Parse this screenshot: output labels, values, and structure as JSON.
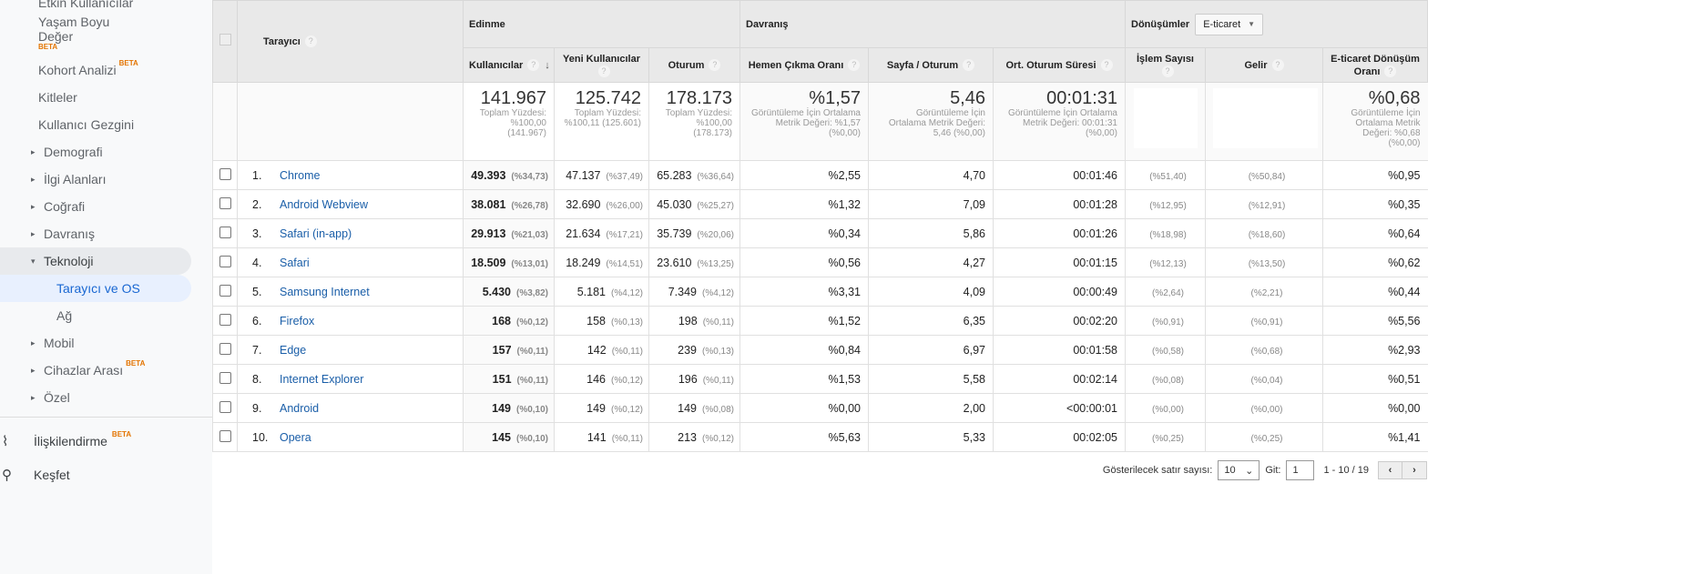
{
  "sidebar": {
    "items": [
      {
        "label": "Etkin Kullanıcılar",
        "indent": 2
      },
      {
        "label": "Yaşam Boyu Değer",
        "beta": "BETA",
        "indent": 2
      },
      {
        "label": "Kohort Analizi",
        "beta": "BETA",
        "indent": 2
      },
      {
        "label": "Kitleler",
        "indent": 2
      },
      {
        "label": "Kullanıcı Gezgini",
        "indent": 2
      },
      {
        "label": "Demografi",
        "expand": "▸"
      },
      {
        "label": "İlgi Alanları",
        "expand": "▸"
      },
      {
        "label": "Coğrafi",
        "expand": "▸"
      },
      {
        "label": "Davranış",
        "expand": "▸"
      },
      {
        "label": "Teknoloji",
        "expand": "▾",
        "state": "open"
      },
      {
        "label": "Tarayıcı ve OS",
        "indent": 3,
        "state": "selected"
      },
      {
        "label": "Ağ",
        "indent": 3
      },
      {
        "label": "Mobil",
        "expand": "▸"
      },
      {
        "label": "Cihazlar Arası",
        "beta": "BETA",
        "expand": "▸"
      },
      {
        "label": "Özel",
        "expand": "▸"
      }
    ],
    "bottom": [
      {
        "label": "İlişkilendirme",
        "beta": "BETA",
        "icon": "attribution-icon"
      },
      {
        "label": "Keşfet",
        "icon": "lightbulb-icon"
      }
    ]
  },
  "table": {
    "dimension": "Tarayıcı",
    "groups": {
      "acq": "Edinme",
      "beh": "Davranış",
      "conv": "Dönüşümler",
      "conv_select": "E-ticaret"
    },
    "columns": [
      "Kullanıcılar",
      "Yeni Kullanıcılar",
      "Oturum",
      "Hemen Çıkma Oranı",
      "Sayfa / Oturum",
      "Ort. Oturum Süresi",
      "İşlem Sayısı",
      "Gelir",
      "E-ticaret Dönüşüm Oranı"
    ],
    "totals": [
      {
        "v": "141.967",
        "s": "Toplam Yüzdesi: %100,00 (141.967)"
      },
      {
        "v": "125.742",
        "s": "Toplam Yüzdesi: %100,11 (125.601)"
      },
      {
        "v": "178.173",
        "s": "Toplam Yüzdesi: %100,00 (178.173)"
      },
      {
        "v": "%1,57",
        "s": "Görüntüleme İçin Ortalama Metrik Değeri: %1,57 (%0,00)"
      },
      {
        "v": "5,46",
        "s": "Görüntüleme İçin Ortalama Metrik Değeri: 5,46 (%0,00)"
      },
      {
        "v": "00:01:31",
        "s": "Görüntüleme İçin Ortalama Metrik Değeri: 00:01:31 (%0,00)"
      },
      {
        "v": "",
        "s": ""
      },
      {
        "v": "",
        "s": ""
      },
      {
        "v": "%0,68",
        "s": "Görüntüleme İçin Ortalama Metrik Değeri: %0,68 (%0,00)"
      }
    ],
    "rows": [
      [
        "1.",
        "Chrome",
        "49.393",
        "(%34,73)",
        "47.137",
        "(%37,49)",
        "65.283",
        "(%36,64)",
        "%2,55",
        "4,70",
        "00:01:46",
        "(%51,40)",
        "(%50,84)",
        "%0,95"
      ],
      [
        "2.",
        "Android Webview",
        "38.081",
        "(%26,78)",
        "32.690",
        "(%26,00)",
        "45.030",
        "(%25,27)",
        "%1,32",
        "7,09",
        "00:01:28",
        "(%12,95)",
        "(%12,91)",
        "%0,35"
      ],
      [
        "3.",
        "Safari (in-app)",
        "29.913",
        "(%21,03)",
        "21.634",
        "(%17,21)",
        "35.739",
        "(%20,06)",
        "%0,34",
        "5,86",
        "00:01:26",
        "(%18,98)",
        "(%18,60)",
        "%0,64"
      ],
      [
        "4.",
        "Safari",
        "18.509",
        "(%13,01)",
        "18.249",
        "(%14,51)",
        "23.610",
        "(%13,25)",
        "%0,56",
        "4,27",
        "00:01:15",
        "(%12,13)",
        "(%13,50)",
        "%0,62"
      ],
      [
        "5.",
        "Samsung Internet",
        "5.430",
        "(%3,82)",
        "5.181",
        "(%4,12)",
        "7.349",
        "(%4,12)",
        "%3,31",
        "4,09",
        "00:00:49",
        "(%2,64)",
        "(%2,21)",
        "%0,44"
      ],
      [
        "6.",
        "Firefox",
        "168",
        "(%0,12)",
        "158",
        "(%0,13)",
        "198",
        "(%0,11)",
        "%1,52",
        "6,35",
        "00:02:20",
        "(%0,91)",
        "(%0,91)",
        "%5,56"
      ],
      [
        "7.",
        "Edge",
        "157",
        "(%0,11)",
        "142",
        "(%0,11)",
        "239",
        "(%0,13)",
        "%0,84",
        "6,97",
        "00:01:58",
        "(%0,58)",
        "(%0,68)",
        "%2,93"
      ],
      [
        "8.",
        "Internet Explorer",
        "151",
        "(%0,11)",
        "146",
        "(%0,12)",
        "196",
        "(%0,11)",
        "%1,53",
        "5,58",
        "00:02:14",
        "(%0,08)",
        "(%0,04)",
        "%0,51"
      ],
      [
        "9.",
        "Android",
        "149",
        "(%0,10)",
        "149",
        "(%0,12)",
        "149",
        "(%0,08)",
        "%0,00",
        "2,00",
        "<00:00:01",
        "(%0,00)",
        "(%0,00)",
        "%0,00"
      ],
      [
        "10.",
        "Opera",
        "145",
        "(%0,10)",
        "141",
        "(%0,11)",
        "213",
        "(%0,12)",
        "%5,63",
        "5,33",
        "00:02:05",
        "(%0,25)",
        "(%0,25)",
        "%1,41"
      ]
    ]
  },
  "footer": {
    "rows_label": "Gösterilecek satır sayısı:",
    "rows_value": "10",
    "goto_label": "Git:",
    "goto_value": "1",
    "range": "1 - 10 / 19"
  },
  "colors": {
    "link": "#1a5ea8",
    "selected_bg": "#e8f0fe",
    "beta": "#e37400"
  }
}
